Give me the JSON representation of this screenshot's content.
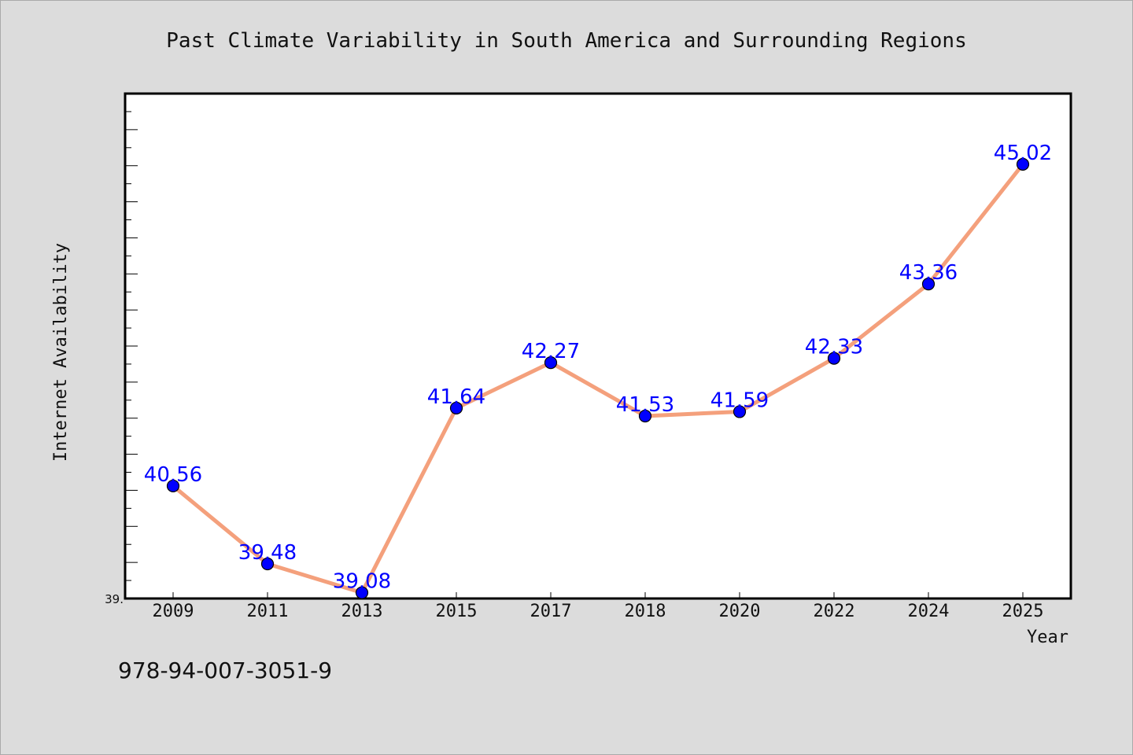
{
  "chart_data": {
    "type": "line",
    "title": "Past Climate Variability in South America and Surrounding Regions",
    "xlabel": "Year",
    "ylabel": "Internet Availability",
    "categories": [
      "2009",
      "2011",
      "2013",
      "2015",
      "2017",
      "2018",
      "2020",
      "2022",
      "2024",
      "2025"
    ],
    "series": [
      {
        "values": [
          40.56,
          39.48,
          39.08,
          41.64,
          42.27,
          41.53,
          41.59,
          42.33,
          43.36,
          45.02
        ],
        "data_labels": [
          "40.56",
          "39.48",
          "39.08",
          "41.64",
          "42.27",
          "41.53",
          "41.59",
          "42.33",
          "43.36",
          "45.02"
        ]
      }
    ],
    "y_tick_label": "39.",
    "ylim": [
      39.0,
      46.0
    ],
    "grid": false,
    "line_color": "#f4a07c",
    "marker_color": "#0000ff",
    "label_color": "#0000ff"
  },
  "footer": {
    "isbn": "978-94-007-3051-9"
  }
}
